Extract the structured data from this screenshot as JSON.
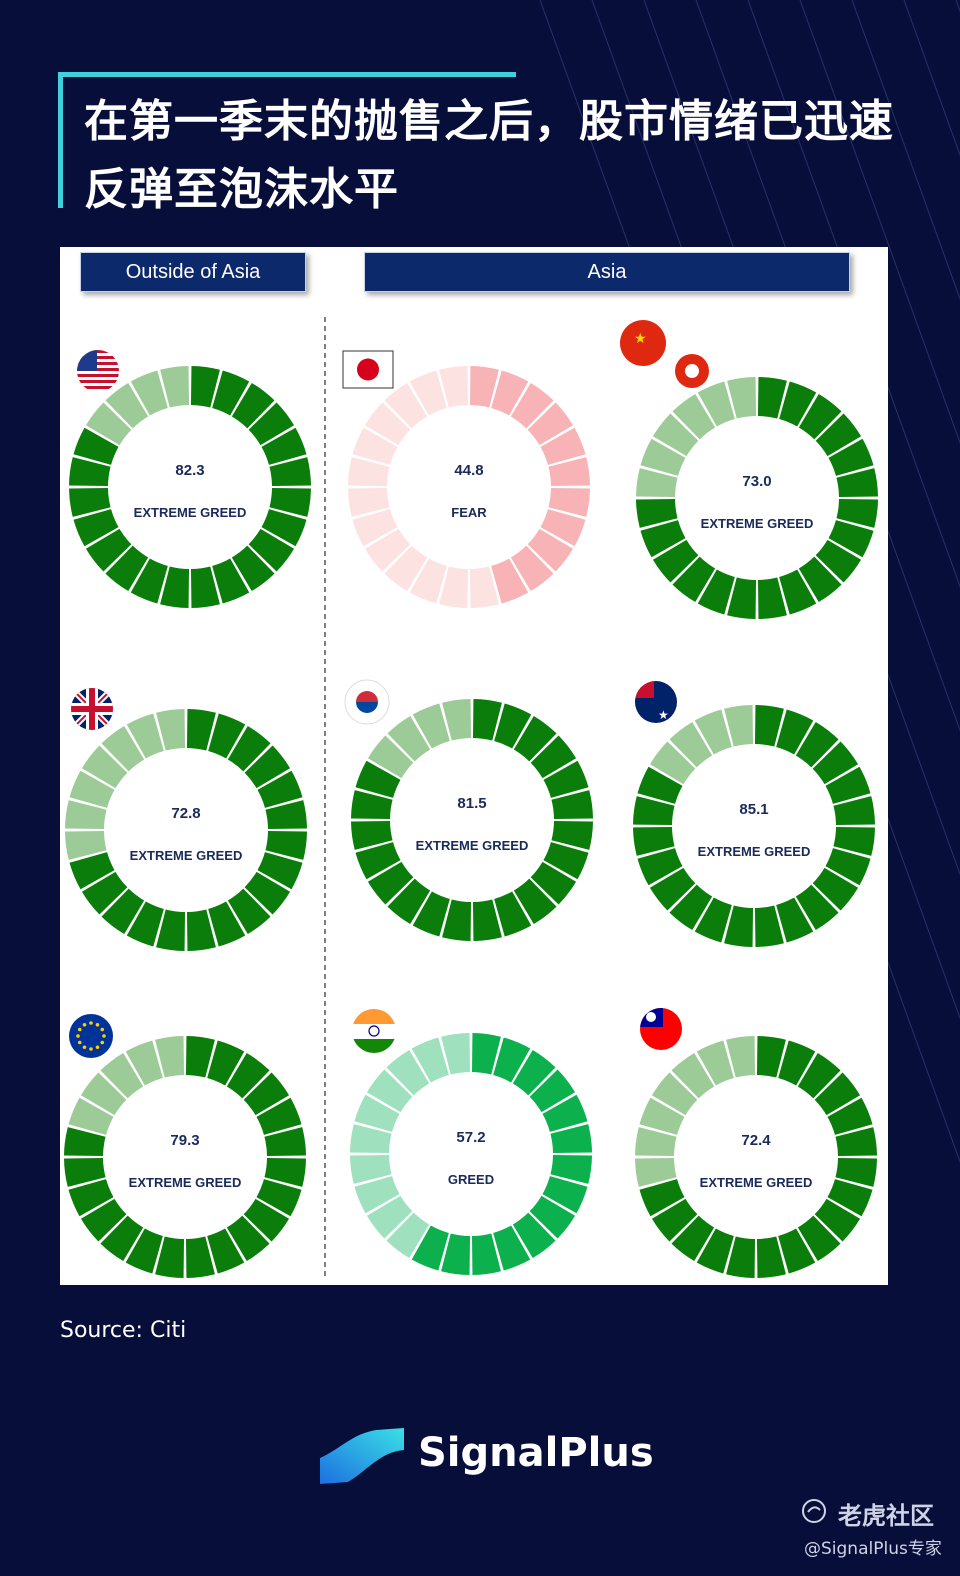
{
  "title": "在第一季末的抛售之后，股市情绪已迅速反弹至泡沫水平",
  "panel": {
    "left_header": "Outside of Asia",
    "right_header": "Asia"
  },
  "source": "Source: Citi",
  "brand": "SignalPlus",
  "watermark": {
    "site": "老虎社区",
    "handle": "@SignalPlus专家"
  },
  "colors": {
    "background": "#070e3a",
    "accent": "#3fd0dc",
    "header": "#0c2a6b"
  },
  "chart_data": {
    "type": "gauge",
    "scale": [
      0,
      100
    ],
    "segments": 24,
    "gauges": [
      {
        "flag": "united-states-flag",
        "value": "82.3",
        "label": "EXTREME GREED",
        "fraction": 0.823,
        "palette": "greed"
      },
      {
        "flag": "japan-flag",
        "value": "44.8",
        "label": "FEAR",
        "fraction": 0.448,
        "palette": "fear"
      },
      {
        "flag": "china-hong-kong-flags",
        "value": "73.0",
        "label": "EXTREME GREED",
        "fraction": 0.73,
        "palette": "greed"
      },
      {
        "flag": "united-kingdom-flag",
        "value": "72.8",
        "label": "EXTREME GREED",
        "fraction": 0.728,
        "palette": "greed"
      },
      {
        "flag": "south-korea-flag",
        "value": "81.5",
        "label": "EXTREME GREED",
        "fraction": 0.815,
        "palette": "greed"
      },
      {
        "flag": "australia-flag",
        "value": "85.1",
        "label": "EXTREME GREED",
        "fraction": 0.851,
        "palette": "greed"
      },
      {
        "flag": "european-union-flag",
        "value": "79.3",
        "label": "EXTREME GREED",
        "fraction": 0.793,
        "palette": "greed"
      },
      {
        "flag": "india-flag",
        "value": "57.2",
        "label": "GREED",
        "fraction": 0.572,
        "palette": "mid"
      },
      {
        "flag": "taiwan-flag",
        "value": "72.4",
        "label": "EXTREME GREED",
        "fraction": 0.724,
        "palette": "greed"
      }
    ]
  }
}
